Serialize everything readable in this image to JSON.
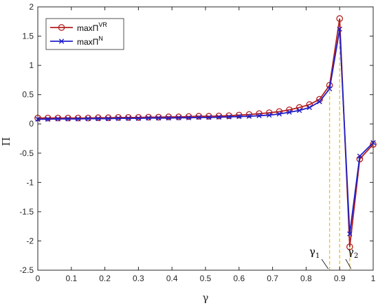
{
  "chart_data": {
    "type": "line",
    "xlabel": "γ",
    "ylabel": "Π",
    "xlim": [
      0,
      1
    ],
    "ylim": [
      -2.5,
      2
    ],
    "x_ticks": [
      "0",
      "0.1",
      "0.2",
      "0.3",
      "0.4",
      "0.5",
      "0.6",
      "0.7",
      "0.8",
      "0.9",
      "1"
    ],
    "y_ticks": [
      "2",
      "1.5",
      "1",
      "0.5",
      "0",
      "-0.5",
      "-1",
      "-1.5",
      "-2",
      "-2.5"
    ],
    "legend_position": "top-left",
    "grid": false,
    "series": [
      {
        "legend_base": "maxΠ",
        "legend_sup": "VR",
        "color": "#b21f1f",
        "marker": "circle",
        "x": [
          0,
          0.03,
          0.06,
          0.09,
          0.12,
          0.15,
          0.18,
          0.21,
          0.24,
          0.27,
          0.3,
          0.33,
          0.36,
          0.39,
          0.42,
          0.45,
          0.48,
          0.51,
          0.54,
          0.57,
          0.6,
          0.63,
          0.66,
          0.69,
          0.72,
          0.75,
          0.78,
          0.81,
          0.84,
          0.87,
          0.9,
          0.93,
          0.96,
          1.0
        ],
        "y": [
          0.1,
          0.1,
          0.1,
          0.1,
          0.1,
          0.1,
          0.105,
          0.105,
          0.11,
          0.11,
          0.11,
          0.115,
          0.115,
          0.12,
          0.12,
          0.125,
          0.13,
          0.13,
          0.135,
          0.14,
          0.15,
          0.16,
          0.175,
          0.19,
          0.21,
          0.24,
          0.28,
          0.33,
          0.42,
          0.66,
          1.8,
          -2.1,
          -0.6,
          -0.35
        ]
      },
      {
        "legend_base": "maxΠ",
        "legend_sup": "N",
        "color": "#1f1fc8",
        "marker": "x",
        "x": [
          0,
          0.03,
          0.06,
          0.09,
          0.12,
          0.15,
          0.18,
          0.21,
          0.24,
          0.27,
          0.3,
          0.33,
          0.36,
          0.39,
          0.42,
          0.45,
          0.48,
          0.51,
          0.54,
          0.57,
          0.6,
          0.63,
          0.66,
          0.69,
          0.72,
          0.75,
          0.78,
          0.81,
          0.84,
          0.87,
          0.9,
          0.93,
          0.96,
          1.0
        ],
        "y": [
          0.08,
          0.08,
          0.085,
          0.085,
          0.085,
          0.09,
          0.09,
          0.09,
          0.095,
          0.095,
          0.095,
          0.1,
          0.1,
          0.1,
          0.105,
          0.105,
          0.11,
          0.11,
          0.115,
          0.12,
          0.125,
          0.13,
          0.14,
          0.15,
          0.17,
          0.2,
          0.23,
          0.28,
          0.38,
          0.6,
          1.62,
          -1.88,
          -0.55,
          -0.32
        ]
      }
    ],
    "reference_lines": [
      {
        "x": 0.87,
        "color": "#f2c200"
      },
      {
        "x": 0.9,
        "color": "#f2c200"
      },
      {
        "x": 0.93,
        "color": "#f2c200"
      }
    ],
    "annotations": [
      {
        "base": "γ",
        "sub": "1",
        "points_to_x": 0.87
      },
      {
        "base": "γ",
        "sub": "2",
        "points_to_x": 0.93
      }
    ]
  }
}
